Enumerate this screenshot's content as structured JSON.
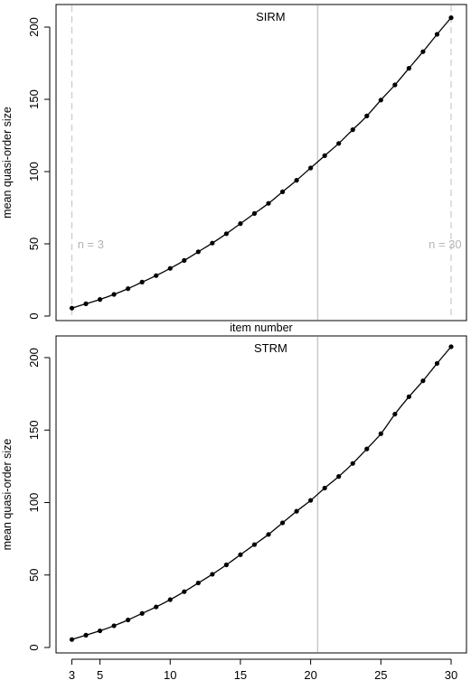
{
  "chart_data": [
    {
      "type": "scatter",
      "title": "SIRM",
      "xlabel": "item number",
      "ylabel": "mean quasi-order size",
      "xlim": [
        3,
        30
      ],
      "ylim": [
        0,
        210
      ],
      "y_ticks": [
        0,
        50,
        100,
        150,
        200
      ],
      "x_ticks": [],
      "vertical_lines": [
        {
          "x": 3,
          "style": "dashed",
          "color": "#c8c8c8"
        },
        {
          "x": 20.5,
          "style": "solid",
          "color": "#c8c8c8"
        },
        {
          "x": 30,
          "style": "dashed",
          "color": "#c8c8c8"
        }
      ],
      "annotations": [
        {
          "text": "n = 3",
          "x": 3.4,
          "y": 50
        },
        {
          "text": "n = 30",
          "x": 28.4,
          "y": 50
        }
      ],
      "series": [
        {
          "style": "points+curve",
          "x": [
            3,
            4,
            5,
            6,
            7,
            8,
            9,
            10,
            11,
            12,
            13,
            14,
            15,
            16,
            17,
            18,
            19,
            20,
            21,
            22,
            23,
            24,
            25,
            26,
            27,
            28,
            29,
            30
          ],
          "values": [
            5.5,
            8.5,
            11.5,
            15,
            19,
            23.5,
            28,
            33,
            38.5,
            44.5,
            50.5,
            57,
            64,
            71,
            78,
            86,
            94,
            102.5,
            111,
            119.5,
            129,
            138.5,
            149.5,
            160,
            171.5,
            183,
            195,
            206.5
          ]
        }
      ],
      "grid": false
    },
    {
      "type": "scatter",
      "title": "STRM",
      "xlabel": "",
      "ylabel": "mean quasi-order size",
      "xlim": [
        3,
        30
      ],
      "ylim": [
        0,
        210
      ],
      "y_ticks": [
        0,
        50,
        100,
        150,
        200
      ],
      "x_ticks": [
        3,
        5,
        10,
        15,
        20,
        25,
        30
      ],
      "vertical_lines": [
        {
          "x": 20.5,
          "style": "solid",
          "color": "#c8c8c8"
        }
      ],
      "annotations": [],
      "series": [
        {
          "style": "points+curve",
          "x": [
            3,
            4,
            5,
            6,
            7,
            8,
            9,
            10,
            11,
            12,
            13,
            14,
            15,
            16,
            17,
            18,
            19,
            20,
            21,
            22,
            23,
            24,
            25,
            26,
            27,
            28,
            29,
            30
          ],
          "values": [
            5.5,
            8.5,
            11.5,
            15,
            19,
            23.5,
            28,
            33,
            38.5,
            44.5,
            50.5,
            57,
            64,
            71,
            78,
            86,
            94,
            101.5,
            110,
            118,
            127,
            137,
            147.5,
            161,
            173,
            184,
            196,
            207.5
          ]
        }
      ],
      "grid": false
    }
  ]
}
